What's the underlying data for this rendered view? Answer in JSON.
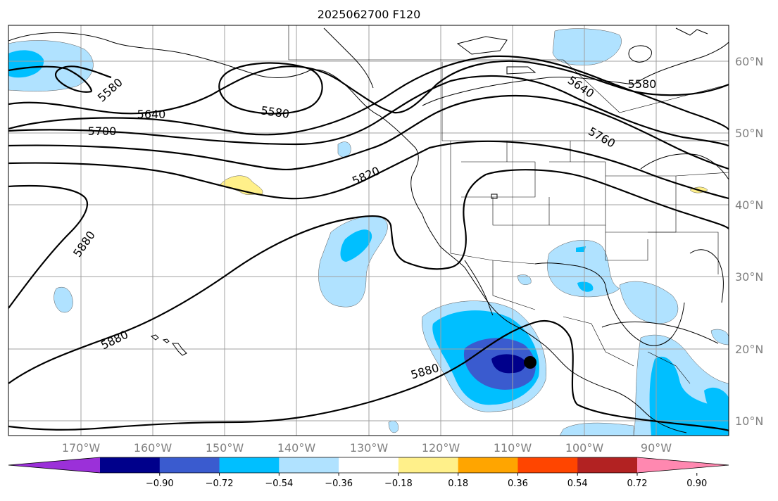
{
  "title": "2025062700 F120",
  "lon_labels": [
    "170°W",
    "160°W",
    "150°W",
    "140°W",
    "130°W",
    "120°W",
    "110°W",
    "100°W",
    "90°W"
  ],
  "lat_labels": [
    "60°N",
    "50°N",
    "40°N",
    "30°N",
    "20°N",
    "10°N"
  ],
  "contour_labels": [
    "5580",
    "5640",
    "5700",
    "5580",
    "5820",
    "5640",
    "5580",
    "5760",
    "5880",
    "5880",
    "5880"
  ],
  "colorbar": {
    "ticks": [
      "−0.90",
      "−0.72",
      "−0.54",
      "−0.36",
      "−0.18",
      "0.18",
      "0.36",
      "0.54",
      "0.72",
      "0.90"
    ],
    "colors": [
      "#9b30d9",
      "#00008b",
      "#3a5bcf",
      "#00bfff",
      "#b0e2ff",
      "#ffffff",
      "#fff08a",
      "#ffa500",
      "#ff4500",
      "#b22222",
      "#ff88b0"
    ]
  },
  "marker": "storm-center-dot"
}
